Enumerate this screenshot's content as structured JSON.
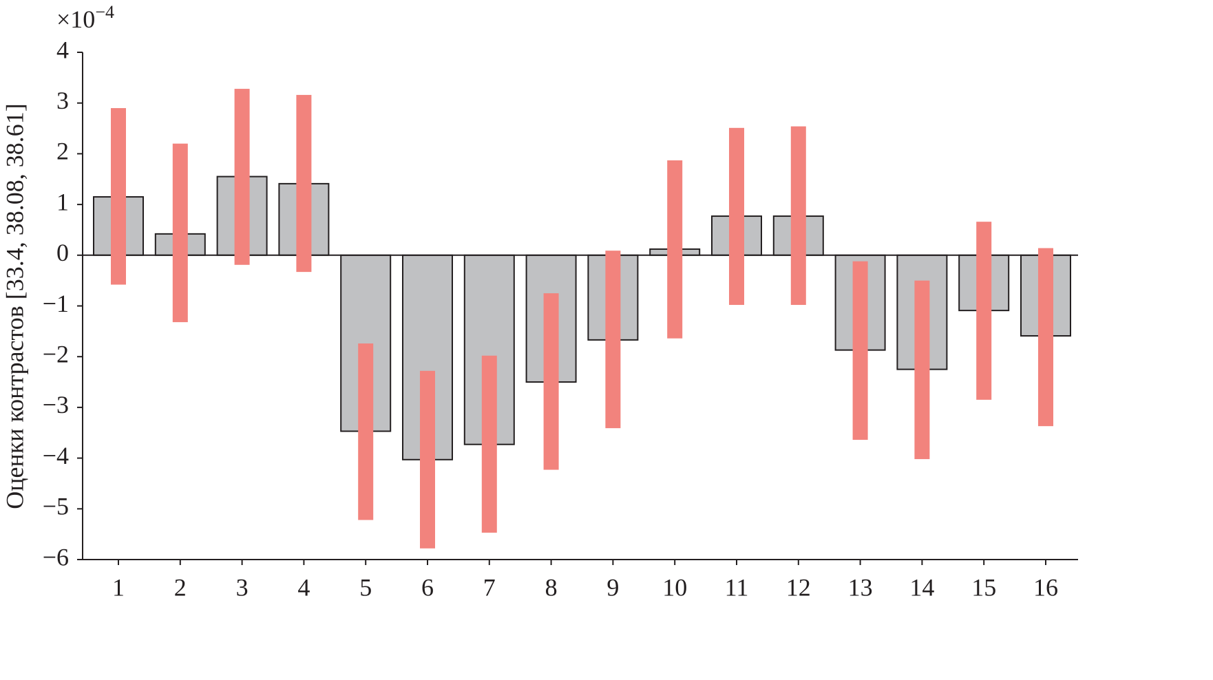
{
  "chart_data": {
    "type": "bar",
    "y_label": "Оценки контрастов [33.4, 38.08, 38.61]",
    "y_multiplier": "×10",
    "y_exponent": "−4",
    "categories": [
      "1",
      "2",
      "3",
      "4",
      "5",
      "6",
      "7",
      "8",
      "9",
      "10",
      "11",
      "12",
      "13",
      "14",
      "15",
      "16"
    ],
    "values": [
      1.15,
      0.42,
      1.55,
      1.41,
      -3.47,
      -4.03,
      -3.73,
      -2.5,
      -1.67,
      0.12,
      0.77,
      0.77,
      -1.87,
      -2.25,
      -1.09,
      -1.59
    ],
    "ci_low": [
      -0.58,
      -1.32,
      -0.19,
      -0.33,
      -5.22,
      -5.78,
      -5.47,
      -4.23,
      -3.41,
      -1.64,
      -0.98,
      -0.98,
      -3.64,
      -4.02,
      -2.85,
      -3.37
    ],
    "ci_high": [
      2.9,
      2.2,
      3.28,
      3.16,
      -1.74,
      -2.28,
      -1.98,
      -0.75,
      0.09,
      1.87,
      2.51,
      2.54,
      -0.12,
      -0.5,
      0.66,
      0.14
    ],
    "color": "#c0c1c3",
    "ci_color": "#f2837d",
    "ylim": [
      -6,
      4
    ],
    "yticks": [
      {
        "value": -6,
        "label": "−6"
      },
      {
        "value": -5,
        "label": "−5"
      },
      {
        "value": -4,
        "label": "−4"
      },
      {
        "value": -3,
        "label": "−3"
      },
      {
        "value": -2,
        "label": "−2"
      },
      {
        "value": -1,
        "label": "−1"
      },
      0,
      1,
      2,
      3,
      4
    ],
    "grid": false
  }
}
